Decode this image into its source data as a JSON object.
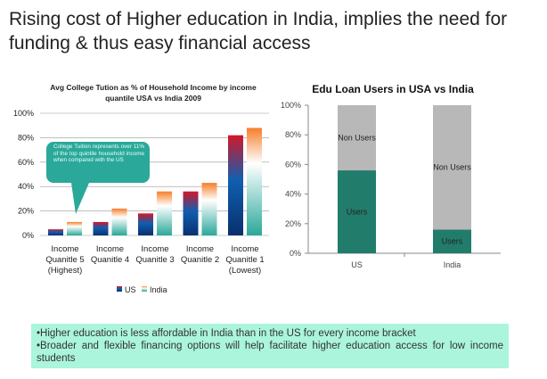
{
  "slide_title": "Rising cost of Higher education in India, implies the need for funding & thus easy financial access",
  "bullets": [
    "•Higher education is less affordable in India than in the US for every income bracket",
    "•Broader and flexible financing options will help facilitate higher education access for low income students"
  ],
  "colors": {
    "us_top": "#d3172a",
    "us_bottom": "#0a2f6e",
    "us_mid": "#0f5fb0",
    "india_top": "#f57f2a",
    "india_bottom": "#2aa89a",
    "users": "#227c6c",
    "non_users": "#b8b8b8",
    "callout": "#2aa89a"
  },
  "chart_data": [
    {
      "type": "bar",
      "title": "Avg College Tution as % of Household Income by income quantile USA vs India 2009",
      "categories": [
        [
          "Income",
          "Quanitle 5",
          "(Highest)"
        ],
        [
          "Income",
          "Quanitle 4"
        ],
        [
          "Income",
          "Quanitle 3"
        ],
        [
          "Income",
          "Quanitle 2"
        ],
        [
          "Income",
          "Quanitle 1",
          "(Lowest)"
        ]
      ],
      "series": [
        {
          "name": "US",
          "values": [
            5,
            11,
            18,
            36,
            82
          ]
        },
        {
          "name": "India",
          "values": [
            11,
            22,
            36,
            43,
            88
          ]
        }
      ],
      "yticks": [
        "0%",
        "20%",
        "40%",
        "60%",
        "80%",
        "100%"
      ],
      "ylim": [
        0,
        100
      ],
      "grid": true,
      "legend": "bottom",
      "annotation": "College Tuition represents over 11% of the top quintile household income when compared with the US"
    },
    {
      "type": "bar",
      "stacked": true,
      "title": "Edu Loan Users in USA vs India",
      "categories": [
        "US",
        "India"
      ],
      "series": [
        {
          "name": "Users",
          "values": [
            56,
            16
          ]
        },
        {
          "name": "Non Users",
          "values": [
            44,
            84
          ]
        }
      ],
      "yticks": [
        "0%",
        "20%",
        "40%",
        "60%",
        "80%",
        "100%"
      ],
      "ylim": [
        0,
        100
      ]
    }
  ]
}
